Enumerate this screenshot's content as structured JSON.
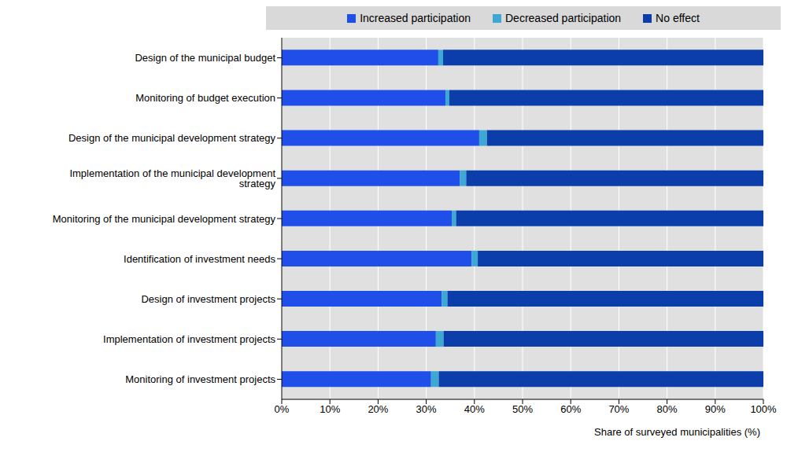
{
  "chart_data": {
    "type": "bar",
    "orientation": "horizontal",
    "stacked": true,
    "grid": true,
    "legend": "top",
    "categories": [
      "Design of the municipal budget",
      "Monitoring of budget execution",
      "Design of the municipal development strategy",
      "Implementation of the municipal development strategy",
      "Monitoring of the municipal development strategy",
      "Identification of investment needs",
      "Design of investment projects",
      "Implementation of investment projects",
      "Monitoring of investment projects"
    ],
    "series": [
      {
        "name": "Increased participation",
        "color": "#1f4fe8",
        "values": [
          32.5,
          34,
          41,
          37,
          35.3,
          39.4,
          33.2,
          32,
          31
        ]
      },
      {
        "name": "Decreased participation",
        "color": "#3ea8d4",
        "values": [
          1,
          0.8,
          1.6,
          1.3,
          0.9,
          1.3,
          1.2,
          1.6,
          1.6
        ]
      },
      {
        "name": "No effect",
        "color": "#0b3eab",
        "values": [
          66.5,
          65.2,
          57.4,
          61.7,
          63.8,
          59.3,
          65.6,
          66.4,
          67.4
        ]
      }
    ],
    "x_label": "Share of surveyed municipalities (%)",
    "xlim": [
      0,
      100
    ],
    "xticks": [
      {
        "value": 0,
        "label": "0%"
      },
      {
        "value": 10,
        "label": "10%"
      },
      {
        "value": 20,
        "label": "20%"
      },
      {
        "value": 30,
        "label": "30%"
      },
      {
        "value": 40,
        "label": "40%"
      },
      {
        "value": 50,
        "label": "50%"
      },
      {
        "value": 60,
        "label": "60%"
      },
      {
        "value": 70,
        "label": "70%"
      },
      {
        "value": 80,
        "label": "80%"
      },
      {
        "value": 90,
        "label": "90%"
      },
      {
        "value": 100,
        "label": "100%"
      }
    ]
  }
}
